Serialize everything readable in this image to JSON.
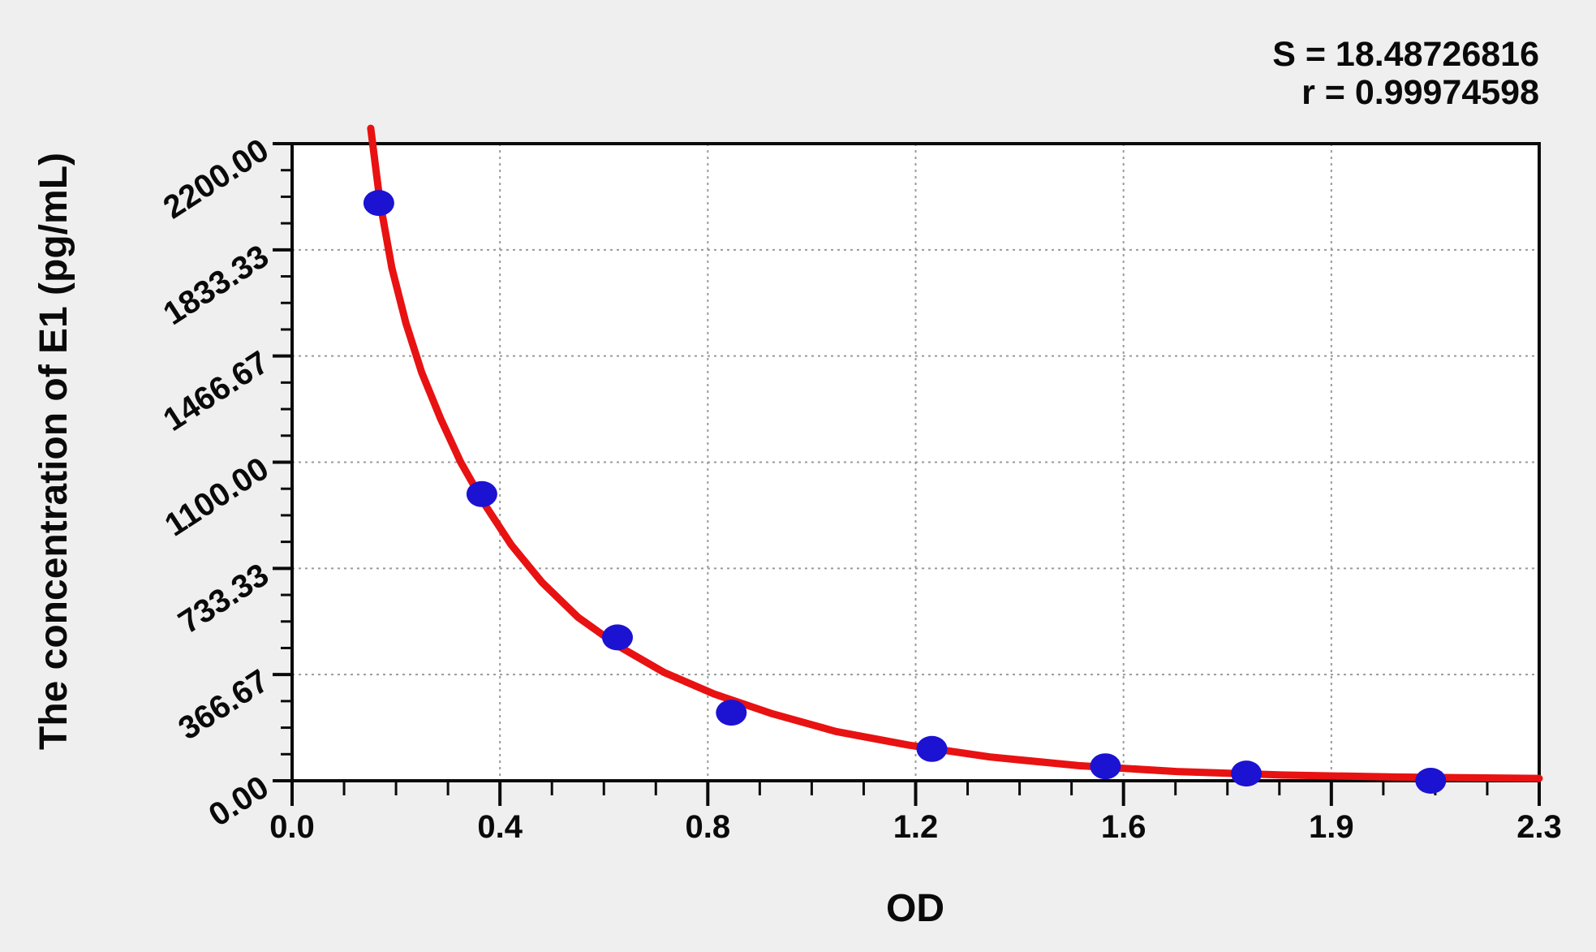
{
  "background_color": "#efefef",
  "chart_data": {
    "type": "scatter",
    "title": "",
    "xlabel": "OD",
    "ylabel": "The concentration of E1 (pg/mL)",
    "annotations": [
      "S = 18.48726816",
      "r = 0.99974598"
    ],
    "x_tick_labels": [
      "0.0",
      "0.4",
      "0.8",
      "1.2",
      "1.6",
      "1.9",
      "2.3"
    ],
    "y_tick_labels": [
      "0.00",
      "366.67",
      "733.33",
      "1100.00",
      "1466.67",
      "1833.33",
      "2200.00"
    ],
    "xlim": [
      0,
      2.3
    ],
    "ylim": [
      0,
      2200
    ],
    "minor_ticks_per_major_interval": 3,
    "grid": {
      "show": true,
      "style": "dashed",
      "color": "#9a9a9a"
    },
    "legend_position": "none",
    "plot_bg": "#ffffff",
    "frame_color": "#0a0a0a",
    "series": [
      {
        "name": "standard-points",
        "type": "scatter",
        "color": "#1c12d2",
        "points": [
          {
            "od": 0.16,
            "conc": 1995
          },
          {
            "od": 0.35,
            "conc": 990
          },
          {
            "od": 0.6,
            "conc": 495
          },
          {
            "od": 0.81,
            "conc": 235
          },
          {
            "od": 1.18,
            "conc": 110
          },
          {
            "od": 1.5,
            "conc": 50
          },
          {
            "od": 1.76,
            "conc": 25
          },
          {
            "od": 2.1,
            "conc": 0
          }
        ]
      },
      {
        "name": "fitted-curve",
        "type": "line",
        "color": "#e81212",
        "points": [
          [
            0.145,
            2253
          ],
          [
            0.162,
            2000
          ],
          [
            0.184,
            1770
          ],
          [
            0.21,
            1580
          ],
          [
            0.239,
            1410
          ],
          [
            0.274,
            1250
          ],
          [
            0.311,
            1100
          ],
          [
            0.355,
            955
          ],
          [
            0.404,
            815
          ],
          [
            0.461,
            685
          ],
          [
            0.527,
            565
          ],
          [
            0.602,
            465
          ],
          [
            0.685,
            375
          ],
          [
            0.778,
            300
          ],
          [
            0.883,
            233
          ],
          [
            1.003,
            170
          ],
          [
            1.137,
            123
          ],
          [
            1.287,
            82
          ],
          [
            1.451,
            52
          ],
          [
            1.631,
            32
          ],
          [
            1.825,
            20
          ],
          [
            2.035,
            13
          ],
          [
            2.3,
            8
          ]
        ]
      }
    ]
  }
}
